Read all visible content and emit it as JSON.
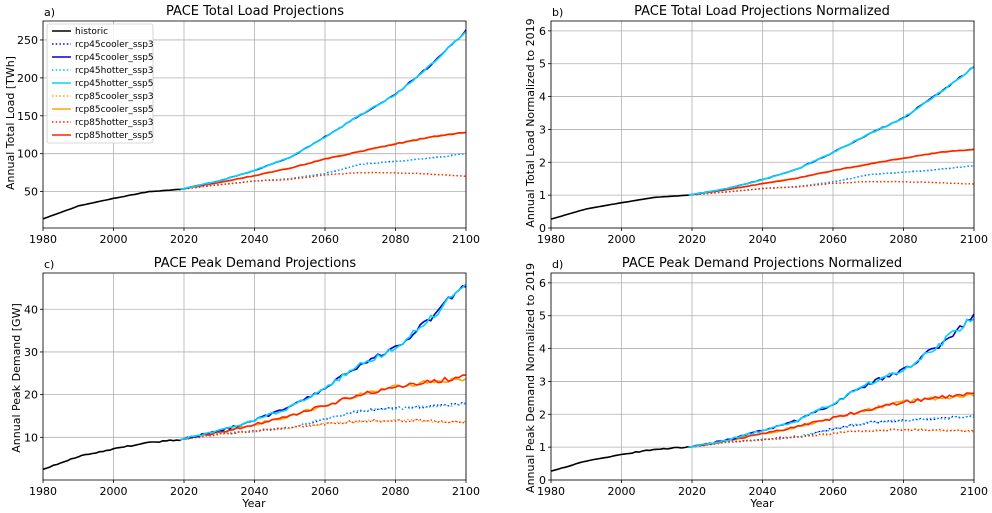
{
  "chart_data": [
    {
      "type": "line",
      "panel_label": "a)",
      "title": "PACE Total Load Projections",
      "xlabel": "",
      "ylabel": "Annual Total Load [TWh]",
      "xlim": [
        1980,
        2100
      ],
      "ylim": [
        2,
        275
      ],
      "xticks": [
        1980,
        2000,
        2020,
        2040,
        2060,
        2080,
        2100
      ],
      "yticks": [
        50,
        100,
        150,
        200,
        250
      ],
      "grid": true,
      "legend": "upper-left",
      "historic": {
        "x": [
          1980,
          1990,
          2000,
          2010,
          2019
        ],
        "y": [
          14,
          31,
          41,
          50,
          53
        ]
      },
      "projection_x": [
        2019,
        2030,
        2040,
        2050,
        2060,
        2070,
        2080,
        2090,
        2100
      ],
      "series": [
        {
          "name": "rcp45cooler_ssp3",
          "values": [
            53,
            59,
            64,
            67,
            74,
            86,
            90,
            94,
            100
          ]
        },
        {
          "name": "rcp45cooler_ssp5",
          "values": [
            53,
            64,
            78,
            95,
            122,
            151,
            178,
            217,
            262
          ]
        },
        {
          "name": "rcp45hotter_ssp3",
          "values": [
            53,
            59,
            64,
            67,
            74,
            86,
            90,
            94,
            100
          ]
        },
        {
          "name": "rcp45hotter_ssp5",
          "values": [
            53,
            64,
            78,
            95,
            122,
            151,
            178,
            217,
            262
          ]
        },
        {
          "name": "rcp85cooler_ssp3",
          "values": [
            53,
            59,
            64,
            66,
            72,
            75,
            75,
            73,
            70
          ]
        },
        {
          "name": "rcp85cooler_ssp5",
          "values": [
            53,
            62,
            71,
            81,
            93,
            103,
            113,
            122,
            128
          ]
        },
        {
          "name": "rcp85hotter_ssp3",
          "values": [
            53,
            59,
            64,
            66,
            72,
            75,
            75,
            73,
            70
          ]
        },
        {
          "name": "rcp85hotter_ssp5",
          "values": [
            53,
            62,
            71,
            81,
            93,
            103,
            113,
            122,
            128
          ]
        }
      ]
    },
    {
      "type": "line",
      "panel_label": "b)",
      "title": "PACE Total Load Projections Normalized",
      "xlabel": "",
      "ylabel": "Annual Total Load Normalized to 2019",
      "xlim": [
        1980,
        2100
      ],
      "ylim": [
        0,
        6.3
      ],
      "xticks": [
        1980,
        2000,
        2020,
        2040,
        2060,
        2080,
        2100
      ],
      "yticks": [
        0,
        1,
        2,
        3,
        4,
        5,
        6
      ],
      "grid": true,
      "historic": {
        "x": [
          1980,
          1990,
          2000,
          2010,
          2019
        ],
        "y": [
          0.27,
          0.58,
          0.77,
          0.94,
          1.0
        ]
      },
      "projection_x": [
        2019,
        2030,
        2040,
        2050,
        2060,
        2070,
        2080,
        2090,
        2100
      ],
      "series": [
        {
          "name": "rcp45cooler_ssp3",
          "values": [
            1.0,
            1.1,
            1.2,
            1.26,
            1.4,
            1.62,
            1.7,
            1.78,
            1.9
          ]
        },
        {
          "name": "rcp45cooler_ssp5",
          "values": [
            1.0,
            1.2,
            1.47,
            1.8,
            2.3,
            2.85,
            3.35,
            4.1,
            4.9
          ]
        },
        {
          "name": "rcp45hotter_ssp3",
          "values": [
            1.0,
            1.1,
            1.2,
            1.26,
            1.4,
            1.62,
            1.7,
            1.78,
            1.9
          ]
        },
        {
          "name": "rcp45hotter_ssp5",
          "values": [
            1.0,
            1.2,
            1.47,
            1.8,
            2.3,
            2.85,
            3.35,
            4.1,
            4.9
          ]
        },
        {
          "name": "rcp85cooler_ssp3",
          "values": [
            1.0,
            1.1,
            1.2,
            1.25,
            1.36,
            1.41,
            1.41,
            1.38,
            1.34
          ]
        },
        {
          "name": "rcp85cooler_ssp5",
          "values": [
            1.0,
            1.17,
            1.35,
            1.52,
            1.75,
            1.94,
            2.13,
            2.3,
            2.4
          ]
        },
        {
          "name": "rcp85hotter_ssp3",
          "values": [
            1.0,
            1.1,
            1.2,
            1.25,
            1.36,
            1.41,
            1.41,
            1.38,
            1.34
          ]
        },
        {
          "name": "rcp85hotter_ssp5",
          "values": [
            1.0,
            1.17,
            1.35,
            1.52,
            1.75,
            1.94,
            2.13,
            2.3,
            2.4
          ]
        }
      ]
    },
    {
      "type": "line",
      "panel_label": "c)",
      "title": "PACE Peak Demand Projections",
      "xlabel": "Year",
      "ylabel": "Annual Peak Demand [GW]",
      "xlim": [
        1980,
        2100
      ],
      "ylim": [
        0,
        48.5
      ],
      "xticks": [
        1980,
        2000,
        2020,
        2040,
        2060,
        2080,
        2100
      ],
      "yticks": [
        10,
        20,
        30,
        40
      ],
      "grid": true,
      "historic": {
        "x": [
          1980,
          1990,
          2000,
          2010,
          2019
        ],
        "y": [
          2.5,
          5.5,
          7.3,
          8.8,
          9.4
        ]
      },
      "projection_x": [
        2019,
        2030,
        2040,
        2050,
        2060,
        2070,
        2080,
        2090,
        2100
      ],
      "series": [
        {
          "name": "rcp45cooler_ssp3",
          "values": [
            9.5,
            10.8,
            11.5,
            12.3,
            14.3,
            16.2,
            16.8,
            17.2,
            18.0
          ]
        },
        {
          "name": "rcp45cooler_ssp5",
          "values": [
            9.5,
            11.5,
            14.0,
            17.0,
            21.5,
            27.0,
            31.0,
            38.0,
            46.0
          ]
        },
        {
          "name": "rcp45hotter_ssp3",
          "values": [
            9.5,
            10.8,
            11.5,
            12.3,
            14.3,
            16.2,
            16.8,
            17.2,
            18.0
          ]
        },
        {
          "name": "rcp45hotter_ssp5",
          "values": [
            9.5,
            11.5,
            14.0,
            17.0,
            21.5,
            27.0,
            31.0,
            38.0,
            46.0
          ]
        },
        {
          "name": "rcp85cooler_ssp3",
          "values": [
            9.5,
            10.8,
            11.5,
            12.2,
            13.2,
            13.8,
            14.0,
            13.8,
            13.6
          ]
        },
        {
          "name": "rcp85cooler_ssp5",
          "values": [
            9.5,
            11.2,
            13.0,
            15.0,
            17.5,
            20.0,
            22.0,
            23.0,
            23.8
          ]
        },
        {
          "name": "rcp85hotter_ssp3",
          "values": [
            9.5,
            10.8,
            11.5,
            12.2,
            13.2,
            13.8,
            14.0,
            13.8,
            13.6
          ]
        },
        {
          "name": "rcp85hotter_ssp5",
          "values": [
            9.5,
            11.2,
            13.0,
            15.0,
            17.5,
            20.0,
            22.0,
            23.0,
            24.3
          ]
        }
      ]
    },
    {
      "type": "line",
      "panel_label": "d)",
      "title": "PACE Peak Demand Projections Normalized",
      "xlabel": "Year",
      "ylabel": "Annual Peak Demand Normalized to 2019",
      "xlim": [
        1980,
        2100
      ],
      "ylim": [
        0,
        6.3
      ],
      "xticks": [
        1980,
        2000,
        2020,
        2040,
        2060,
        2080,
        2100
      ],
      "yticks": [
        0,
        1,
        2,
        3,
        4,
        5,
        6
      ],
      "grid": true,
      "historic": {
        "x": [
          1980,
          1990,
          2000,
          2010,
          2019
        ],
        "y": [
          0.27,
          0.58,
          0.78,
          0.94,
          1.0
        ]
      },
      "projection_x": [
        2019,
        2030,
        2040,
        2050,
        2060,
        2070,
        2080,
        2090,
        2100
      ],
      "series": [
        {
          "name": "rcp45cooler_ssp3",
          "values": [
            1.0,
            1.15,
            1.23,
            1.32,
            1.55,
            1.75,
            1.82,
            1.87,
            1.95
          ]
        },
        {
          "name": "rcp45cooler_ssp5",
          "values": [
            1.0,
            1.22,
            1.5,
            1.82,
            2.33,
            2.93,
            3.35,
            4.1,
            5.0
          ]
        },
        {
          "name": "rcp45hotter_ssp3",
          "values": [
            1.0,
            1.15,
            1.23,
            1.32,
            1.55,
            1.75,
            1.82,
            1.87,
            1.95
          ]
        },
        {
          "name": "rcp45hotter_ssp5",
          "values": [
            1.0,
            1.22,
            1.5,
            1.82,
            2.33,
            2.93,
            3.35,
            4.1,
            5.0
          ]
        },
        {
          "name": "rcp85cooler_ssp3",
          "values": [
            1.0,
            1.15,
            1.23,
            1.3,
            1.42,
            1.5,
            1.53,
            1.52,
            1.48
          ]
        },
        {
          "name": "rcp85cooler_ssp5",
          "values": [
            1.0,
            1.2,
            1.4,
            1.62,
            1.88,
            2.15,
            2.38,
            2.5,
            2.6
          ]
        },
        {
          "name": "rcp85hotter_ssp3",
          "values": [
            1.0,
            1.15,
            1.23,
            1.3,
            1.42,
            1.5,
            1.53,
            1.52,
            1.48
          ]
        },
        {
          "name": "rcp85hotter_ssp5",
          "values": [
            1.0,
            1.2,
            1.4,
            1.62,
            1.88,
            2.15,
            2.38,
            2.52,
            2.65
          ]
        }
      ]
    }
  ],
  "legend": {
    "historic_label": "historic",
    "historic_color": "#000000",
    "entries": [
      {
        "name": "rcp45cooler_ssp3",
        "color": "#0000ff",
        "style": "dotted"
      },
      {
        "name": "rcp45cooler_ssp5",
        "color": "#0000cd",
        "style": "solid"
      },
      {
        "name": "rcp45hotter_ssp3",
        "color": "#00bfff",
        "style": "dotted"
      },
      {
        "name": "rcp45hotter_ssp5",
        "color": "#00d5ff",
        "style": "solid"
      },
      {
        "name": "rcp85cooler_ssp3",
        "color": "#ffa500",
        "style": "dotted"
      },
      {
        "name": "rcp85cooler_ssp5",
        "color": "#ffa500",
        "style": "solid"
      },
      {
        "name": "rcp85hotter_ssp3",
        "color": "#ff2200",
        "style": "dotted"
      },
      {
        "name": "rcp85hotter_ssp5",
        "color": "#ff2200",
        "style": "solid"
      }
    ]
  }
}
